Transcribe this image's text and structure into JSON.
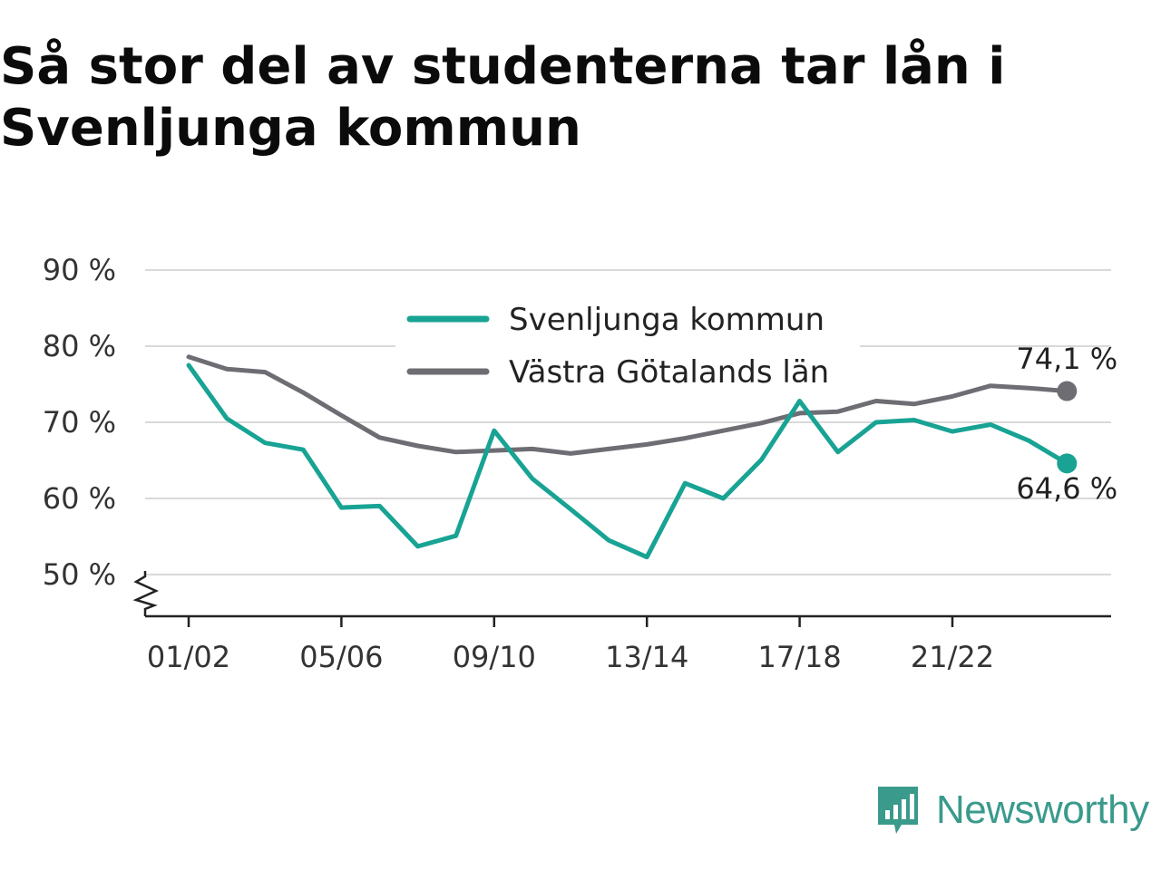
{
  "title_line1": "Så stor del av studenterna tar lån i",
  "title_line2": "Svenljunga kommun",
  "brand": {
    "name": "Newsworthy",
    "icon": "newsworthy-logo-icon",
    "color": "#3a9a8c"
  },
  "chart_data": {
    "type": "line",
    "title": "Så stor del av studenterna tar lån i Svenljunga kommun",
    "xlabel": "",
    "ylabel": "",
    "ylim": [
      45,
      90
    ],
    "y_ticks": [
      50,
      60,
      70,
      80,
      90
    ],
    "y_tick_labels": [
      "50 %",
      "60 %",
      "70 %",
      "80 %",
      "90 %"
    ],
    "y_axis_broken": true,
    "grid": true,
    "legend": "top-center",
    "categories": [
      "01/02",
      "02/03",
      "03/04",
      "04/05",
      "05/06",
      "06/07",
      "07/08",
      "08/09",
      "09/10",
      "10/11",
      "11/12",
      "12/13",
      "13/14",
      "14/15",
      "15/16",
      "16/17",
      "17/18",
      "18/19",
      "19/20",
      "20/21",
      "21/22",
      "22/23",
      "23/24",
      "24/25"
    ],
    "x_tick_labels": [
      "01/02",
      "05/06",
      "09/10",
      "13/14",
      "17/18",
      "21/22"
    ],
    "series": [
      {
        "name": "Svenljunga kommun",
        "color": "#18a394",
        "values": [
          77.5,
          70.5,
          67.3,
          66.4,
          58.8,
          59.0,
          53.7,
          55.1,
          68.9,
          62.6,
          58.6,
          54.5,
          52.3,
          62.0,
          60.0,
          65.1,
          72.8,
          66.1,
          70.0,
          70.3,
          68.8,
          69.7,
          67.6,
          64.6
        ],
        "end_label": "64,6 %"
      },
      {
        "name": "Västra Götalands län",
        "color": "#6e6d73",
        "values": [
          78.6,
          77.0,
          76.6,
          73.9,
          70.9,
          68.0,
          66.9,
          66.1,
          66.3,
          66.5,
          65.9,
          66.5,
          67.1,
          67.9,
          68.9,
          69.9,
          71.2,
          71.4,
          72.8,
          72.4,
          73.4,
          74.8,
          74.5,
          74.1
        ],
        "end_label": "74,1 %"
      }
    ]
  }
}
